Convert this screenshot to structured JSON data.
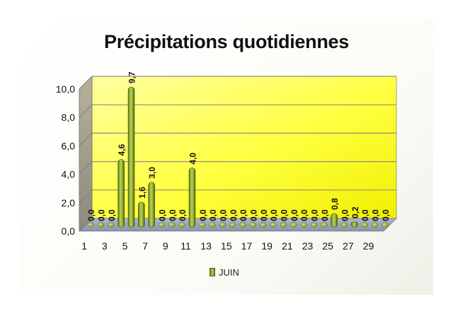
{
  "chart_data": {
    "type": "bar",
    "title": "Précipitations quotidiennes",
    "categories": [
      1,
      2,
      3,
      4,
      5,
      6,
      7,
      8,
      9,
      10,
      11,
      12,
      13,
      14,
      15,
      16,
      17,
      18,
      19,
      20,
      21,
      22,
      23,
      24,
      25,
      26,
      27,
      28,
      29,
      30
    ],
    "x_tick_labels": [
      "1",
      "3",
      "5",
      "7",
      "9",
      "11",
      "13",
      "15",
      "17",
      "19",
      "21",
      "23",
      "25",
      "27",
      "29"
    ],
    "y_tick_labels": [
      "0,0",
      "2,0",
      "4,0",
      "6,0",
      "8,0",
      "10,0"
    ],
    "ylim": [
      0,
      10
    ],
    "grid": true,
    "legend_position": "bottom",
    "series": [
      {
        "name": "JUIN",
        "color": "#8aa62a",
        "values": [
          0,
          0,
          0,
          4.6,
          9.7,
          1.6,
          3.0,
          0,
          0,
          0,
          4.0,
          0,
          0,
          0,
          0,
          0,
          0,
          0,
          0,
          0,
          0,
          0,
          0,
          0,
          0.8,
          0,
          0.2,
          0,
          0,
          0
        ],
        "labels": [
          "0,0",
          "0,0",
          "0,0",
          "4,6",
          "9,7",
          "1,6",
          "3,0",
          "0,0",
          "0,0",
          "0,0",
          "4,0",
          "0,0",
          "0,0",
          "0,0",
          "0,0",
          "0,0",
          "0,0",
          "0,0",
          "0,0",
          "0,0",
          "0,0",
          "0,0",
          "0,0",
          "0,0",
          "0,8",
          "0,0",
          "0,2",
          "0,0",
          "0,0",
          "0,0"
        ]
      }
    ]
  }
}
